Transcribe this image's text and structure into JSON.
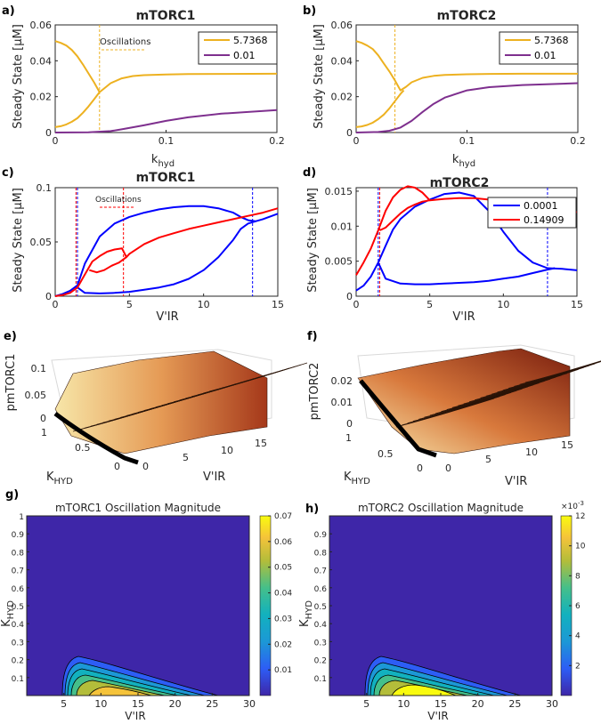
{
  "chart_data": [
    {
      "panel": "a)",
      "type": "line",
      "title": "mTORC1",
      "xlabel": "k",
      "xlabel_sub": "hyd",
      "ylabel": "Steady State [μM]",
      "xlim": [
        0,
        0.2
      ],
      "ylim": [
        0,
        0.06
      ],
      "xticks": [
        0,
        0.1,
        0.2
      ],
      "xtick_labels": [
        "0",
        "0.1",
        "0.2"
      ],
      "yticks": [
        0,
        0.02,
        0.04,
        0.06
      ],
      "ytick_labels": [
        "0",
        "0.02",
        "0.04",
        "0.06"
      ],
      "annotation": "Oscillations",
      "series": [
        {
          "name": "5.7368",
          "color": "#EDB120",
          "x": [
            0,
            0.005,
            0.01,
            0.015,
            0.02,
            0.025,
            0.03,
            0.035,
            0.04,
            0.045,
            0.05,
            0.06,
            0.07,
            0.08,
            0.1,
            0.12,
            0.15,
            0.2
          ],
          "y": [
            0.051,
            0.05,
            0.0485,
            0.046,
            0.0425,
            0.038,
            0.033,
            0.028,
            0.0225,
            0.025,
            0.0275,
            0.0302,
            0.0315,
            0.032,
            0.0324,
            0.0326,
            0.0327,
            0.0328
          ]
        },
        {
          "name": "5.7368 lower",
          "color": "#EDB120",
          "x": [
            0,
            0.005,
            0.01,
            0.015,
            0.02,
            0.025,
            0.03,
            0.035,
            0.04
          ],
          "y": [
            0.003,
            0.0035,
            0.0045,
            0.006,
            0.008,
            0.011,
            0.0145,
            0.0185,
            0.0225
          ]
        },
        {
          "name": "0.01",
          "color": "#7E2F8E",
          "x": [
            0,
            0.03,
            0.05,
            0.06,
            0.08,
            0.1,
            0.12,
            0.15,
            0.2
          ],
          "y": [
            0,
            0.0001,
            0.0008,
            0.0018,
            0.004,
            0.0065,
            0.0085,
            0.0105,
            0.0125
          ]
        }
      ],
      "vlines": [
        0.04
      ]
    },
    {
      "panel": "b)",
      "type": "line",
      "title": "mTORC2",
      "xlabel": "k",
      "xlabel_sub": "hyd",
      "ylabel": "Steady State [μM]",
      "xlim": [
        0,
        0.2
      ],
      "ylim": [
        0,
        0.06
      ],
      "xticks": [
        0,
        0.1,
        0.2
      ],
      "xtick_labels": [
        "0",
        "0.1",
        "0.2"
      ],
      "yticks": [
        0,
        0.02,
        0.04,
        0.06
      ],
      "ytick_labels": [
        "0",
        "0.02",
        "0.04",
        "0.06"
      ],
      "series": [
        {
          "name": "5.7368",
          "color": "#EDB120",
          "x": [
            0,
            0.005,
            0.01,
            0.015,
            0.02,
            0.025,
            0.03,
            0.035,
            0.04,
            0.045,
            0.05,
            0.06,
            0.07,
            0.08,
            0.1,
            0.12,
            0.15,
            0.2
          ],
          "y": [
            0.051,
            0.05,
            0.0485,
            0.0465,
            0.043,
            0.0385,
            0.034,
            0.029,
            0.0235,
            0.0255,
            0.028,
            0.0305,
            0.0316,
            0.0321,
            0.0325,
            0.0327,
            0.0328,
            0.0328
          ]
        },
        {
          "name": "5.7368 lower",
          "color": "#EDB120",
          "x": [
            0,
            0.005,
            0.01,
            0.015,
            0.02,
            0.025,
            0.03,
            0.035,
            0.04,
            0.043
          ],
          "y": [
            0.003,
            0.0034,
            0.0042,
            0.0055,
            0.0075,
            0.01,
            0.0135,
            0.0175,
            0.0215,
            0.0235
          ]
        },
        {
          "name": "0.01",
          "color": "#7E2F8E",
          "x": [
            0,
            0.02,
            0.03,
            0.04,
            0.05,
            0.06,
            0.07,
            0.08,
            0.1,
            0.12,
            0.15,
            0.2
          ],
          "y": [
            0,
            0.0003,
            0.001,
            0.0028,
            0.0065,
            0.0115,
            0.016,
            0.0195,
            0.0235,
            0.0253,
            0.0265,
            0.0275
          ]
        }
      ],
      "vlines": [
        0.035
      ]
    },
    {
      "panel": "c)",
      "type": "line",
      "title": "mTORC1",
      "xlabel": "V'IR",
      "ylabel": "Steady State [μM]",
      "xlim": [
        0,
        15
      ],
      "ylim": [
        0,
        0.1
      ],
      "xticks": [
        0,
        5,
        10,
        15
      ],
      "xtick_labels": [
        "0",
        "5",
        "10",
        "15"
      ],
      "yticks": [
        0,
        0.05,
        0.1
      ],
      "ytick_labels": [
        "0",
        "0.05",
        "0.1"
      ],
      "annotation": "Oscillations",
      "series": [
        {
          "name": "blue upper",
          "color": "#0000FF",
          "x": [
            0,
            0.5,
            1,
            1.5,
            2,
            3,
            4,
            5,
            6,
            7,
            8,
            9,
            10,
            11,
            12,
            12.5,
            13,
            13.5,
            14,
            15
          ],
          "y": [
            0,
            0.002,
            0.005,
            0.01,
            0.03,
            0.055,
            0.067,
            0.073,
            0.077,
            0.08,
            0.082,
            0.083,
            0.083,
            0.081,
            0.077,
            0.073,
            0.07,
            0.069,
            0.071,
            0.076
          ]
        },
        {
          "name": "blue lower",
          "color": "#0000FF",
          "x": [
            1.5,
            2,
            3,
            4,
            5,
            6,
            7,
            8,
            9,
            10,
            11,
            12,
            12.5,
            13,
            13.5
          ],
          "y": [
            0.008,
            0.003,
            0.0025,
            0.003,
            0.004,
            0.006,
            0.008,
            0.011,
            0.016,
            0.024,
            0.036,
            0.052,
            0.062,
            0.067,
            0.069
          ]
        },
        {
          "name": "red",
          "color": "#FF0000",
          "x": [
            0,
            0.5,
            1,
            1.5,
            2,
            2.5,
            3,
            3.5,
            4,
            4.5,
            4.8,
            5,
            6,
            7,
            8,
            9,
            10,
            11,
            12,
            13,
            14,
            15
          ],
          "y": [
            0,
            0.001,
            0.003,
            0.008,
            0.02,
            0.032,
            0.037,
            0.041,
            0.043,
            0.044,
            0.036,
            0.039,
            0.048,
            0.054,
            0.058,
            0.062,
            0.065,
            0.068,
            0.071,
            0.074,
            0.077,
            0.081
          ]
        },
        {
          "name": "red lower",
          "color": "#FF0000",
          "x": [
            2.3,
            2.8,
            3.3,
            3.8,
            4.3,
            4.8
          ],
          "y": [
            0.024,
            0.022,
            0.024,
            0.028,
            0.031,
            0.036
          ]
        }
      ],
      "vlines_blue": [
        1.5,
        13.3
      ],
      "vlines_red": [
        1.4,
        4.6
      ]
    },
    {
      "panel": "d)",
      "type": "line",
      "title": "mTORC2",
      "xlabel": "V'IR",
      "ylabel": "Steady State [μM]",
      "xlim": [
        0,
        15
      ],
      "ylim": [
        0,
        0.0155
      ],
      "xticks": [
        0,
        5,
        10,
        15
      ],
      "xtick_labels": [
        "0",
        "5",
        "10",
        "15"
      ],
      "yticks": [
        0,
        0.005,
        0.01,
        0.015
      ],
      "ytick_labels": [
        "0",
        "0.005",
        "0.01",
        "0.015"
      ],
      "series": [
        {
          "name": "0.0001",
          "color": "#0000FF",
          "x": [
            0,
            0.5,
            1,
            1.5,
            2,
            2.5,
            3,
            4,
            5,
            6,
            7,
            8,
            9,
            10,
            11,
            12,
            13,
            14,
            15
          ],
          "y": [
            0.0008,
            0.0015,
            0.0028,
            0.0048,
            0.0072,
            0.0095,
            0.011,
            0.0128,
            0.0138,
            0.0146,
            0.0148,
            0.0143,
            0.0122,
            0.0092,
            0.0065,
            0.0048,
            0.004,
            0.0039,
            0.0037
          ]
        },
        {
          "name": "0.0001 lower",
          "color": "#0000FF",
          "x": [
            1.5,
            2,
            3,
            4,
            5,
            6,
            7,
            8,
            9,
            10,
            11,
            12,
            13,
            13.5
          ],
          "y": [
            0.0048,
            0.0025,
            0.0018,
            0.0017,
            0.0017,
            0.0018,
            0.0019,
            0.002,
            0.0022,
            0.0025,
            0.0028,
            0.0033,
            0.0038,
            0.004
          ]
        },
        {
          "name": "0.14909",
          "color": "#FF0000",
          "x": [
            0,
            0.5,
            1,
            1.5,
            2,
            2.5,
            3,
            3.5,
            4,
            4.5,
            5,
            6,
            7,
            8,
            9,
            10,
            11,
            12,
            13,
            14,
            15
          ],
          "y": [
            0.003,
            0.0048,
            0.0068,
            0.0094,
            0.0122,
            0.0141,
            0.0152,
            0.0157,
            0.0155,
            0.0148,
            0.0137,
            0.0139,
            0.014,
            0.014,
            0.0138,
            0.0135,
            0.0132,
            0.0128,
            0.0125,
            0.0122,
            0.012
          ]
        },
        {
          "name": "0.14909 lower",
          "color": "#FF0000",
          "x": [
            1.6,
            2,
            2.5,
            3,
            3.5,
            4,
            4.5,
            5
          ],
          "y": [
            0.0094,
            0.0098,
            0.0108,
            0.0118,
            0.0126,
            0.0131,
            0.0135,
            0.0137
          ]
        }
      ],
      "vlines_blue": [
        1.5,
        13
      ],
      "vlines_red": [
        1.6
      ]
    },
    {
      "panel": "e)",
      "type": "surface",
      "zlabel": "pmTORC1",
      "ylabel": "K",
      "ylabel_sub": "HYD",
      "xlabel": "V'IR",
      "zticks": [
        "0",
        "0.05",
        "0.1"
      ],
      "yticks": [
        "0",
        "0.5",
        "1"
      ],
      "xticks": [
        "0",
        "5",
        "10",
        "15"
      ],
      "xlim": [
        0,
        15
      ],
      "ylim": [
        0,
        1
      ],
      "zlim": [
        0,
        0.1
      ]
    },
    {
      "panel": "f)",
      "type": "surface",
      "zlabel": "pmTORC2",
      "ylabel": "K",
      "ylabel_sub": "HYD",
      "xlabel": "V'IR",
      "zticks": [
        "0",
        "0.01",
        "0.02"
      ],
      "yticks": [
        "0",
        "0.5",
        "1"
      ],
      "xticks": [
        "0",
        "5",
        "10",
        "15"
      ],
      "xlim": [
        0,
        15
      ],
      "ylim": [
        0,
        1
      ],
      "zlim": [
        0,
        0.025
      ]
    },
    {
      "panel": "g)",
      "type": "heatmap",
      "title": "mTORC1 Oscillation Magnitude",
      "xlabel": "V'IR",
      "ylabel": "K",
      "ylabel_sub": "HYD",
      "xlim": [
        0,
        30
      ],
      "ylim": [
        0,
        1
      ],
      "xticks": [
        "5",
        "10",
        "15",
        "20",
        "25",
        "30"
      ],
      "yticks": [
        "0.1",
        "0.2",
        "0.3",
        "0.4",
        "0.5",
        "0.6",
        "0.7",
        "0.8",
        "0.9",
        "1"
      ],
      "colorbar": [
        "0.01",
        "0.02",
        "0.03",
        "0.04",
        "0.05",
        "0.06",
        "0.07"
      ],
      "clim": [
        0,
        0.07
      ]
    },
    {
      "panel": "h)",
      "type": "heatmap",
      "title": "mTORC2 Oscillation Magnitude",
      "xlabel": "V'IR",
      "ylabel": "K",
      "ylabel_sub": "HYD",
      "xlim": [
        0,
        30
      ],
      "ylim": [
        0,
        1
      ],
      "xticks": [
        "5",
        "10",
        "15",
        "20",
        "25",
        "30"
      ],
      "yticks": [
        "0.1",
        "0.2",
        "0.3",
        "0.4",
        "0.5",
        "0.6",
        "0.7",
        "0.8",
        "0.9"
      ],
      "colorbar": [
        "2",
        "4",
        "6",
        "8",
        "10",
        "12"
      ],
      "colorbar_exp": "×10",
      "colorbar_exp_power": "-3",
      "clim": [
        0,
        12
      ]
    }
  ],
  "legends": {
    "a": [
      "5.7368",
      "0.01"
    ],
    "b": [
      "5.7368",
      "0.01"
    ],
    "d": [
      "0.0001",
      "0.14909"
    ]
  },
  "colors": {
    "yellow": "#EDB120",
    "purple": "#7E2F8E",
    "blue": "#0000FF",
    "red": "#FF0000",
    "heat_bg": "#3E26A8"
  }
}
